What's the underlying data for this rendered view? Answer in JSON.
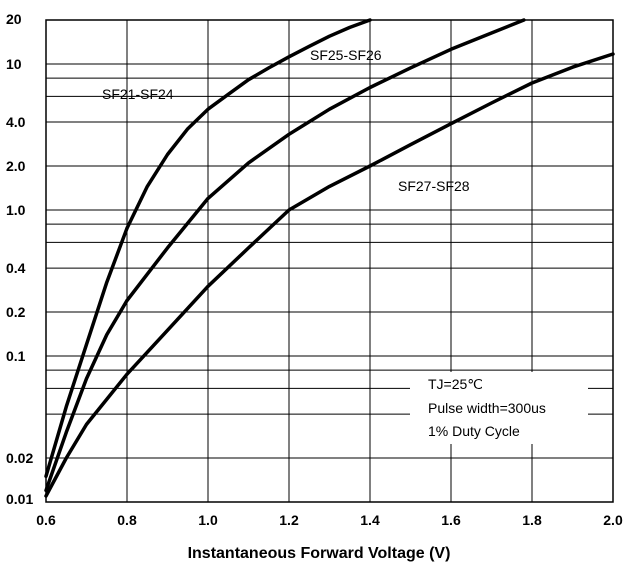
{
  "chart_data": {
    "type": "line",
    "title": "",
    "xlabel": "Instantaneous Forward Voltage (V)",
    "ylabel": "",
    "xlim": [
      0.6,
      2.0
    ],
    "ylim": [
      0.01,
      20
    ],
    "yscale": "log",
    "grid": true,
    "x_ticks": [
      "0.6",
      "0.8",
      "1.0",
      "1.2",
      "1.4",
      "1.6",
      "1.8",
      "2.0"
    ],
    "x_tick_values": [
      0.6,
      0.8,
      1.0,
      1.2,
      1.4,
      1.6,
      1.8,
      2.0
    ],
    "y_ticks": [
      "20",
      "10",
      "4.0",
      "2.0",
      "1.0",
      "0.4",
      "0.2",
      "0.1",
      "0.02",
      "0.01"
    ],
    "y_tick_values": [
      20,
      10,
      4,
      2,
      1,
      0.4,
      0.2,
      0.1,
      0.02,
      0.01
    ],
    "y_gridlines": [
      20,
      10,
      8,
      6,
      4,
      2,
      1,
      0.8,
      0.6,
      0.4,
      0.2,
      0.1,
      0.08,
      0.06,
      0.04,
      0.02,
      0.01
    ],
    "series": [
      {
        "name": "SF21-SF24",
        "x": [
          0.6,
          0.65,
          0.7,
          0.75,
          0.8,
          0.85,
          0.9,
          0.95,
          1.0,
          1.05,
          1.1,
          1.15,
          1.2,
          1.25,
          1.3,
          1.35,
          1.4
        ],
        "y": [
          0.015,
          0.045,
          0.12,
          0.32,
          0.75,
          1.45,
          2.4,
          3.6,
          4.9,
          6.2,
          7.8,
          9.4,
          11.2,
          13.2,
          15.5,
          17.8,
          20
        ]
      },
      {
        "name": "SF25-SF26",
        "x": [
          0.6,
          0.65,
          0.7,
          0.75,
          0.8,
          0.9,
          1.0,
          1.1,
          1.2,
          1.3,
          1.4,
          1.5,
          1.6,
          1.7,
          1.78
        ],
        "y": [
          0.012,
          0.03,
          0.07,
          0.14,
          0.24,
          0.55,
          1.2,
          2.1,
          3.3,
          4.9,
          6.9,
          9.4,
          12.6,
          16.3,
          20
        ]
      },
      {
        "name": "SF27-SF28",
        "x": [
          0.6,
          0.65,
          0.7,
          0.8,
          0.9,
          1.0,
          1.1,
          1.2,
          1.3,
          1.4,
          1.5,
          1.6,
          1.7,
          1.8,
          1.9,
          2.0
        ],
        "y": [
          0.011,
          0.02,
          0.034,
          0.075,
          0.15,
          0.3,
          0.55,
          1.0,
          1.45,
          2.0,
          2.8,
          3.9,
          5.4,
          7.4,
          9.5,
          11.7
        ]
      }
    ],
    "annotations": [
      "TJ=25℃",
      "Pulse width=300us",
      "1% Duty Cycle"
    ]
  }
}
